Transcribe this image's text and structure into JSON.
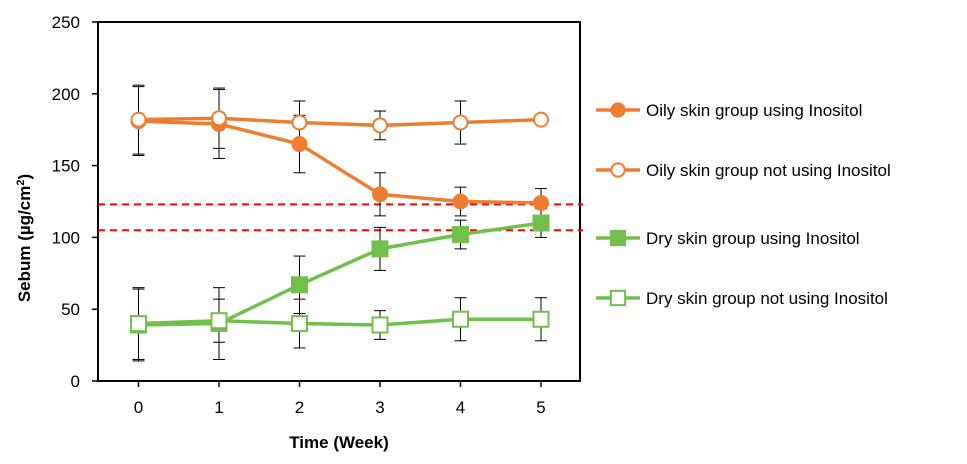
{
  "chart_data": {
    "type": "line",
    "title": "",
    "xlabel": "Time (Week)",
    "ylabel_main": "Sebum (µg/cm",
    "ylabel_sup": "2",
    "ylabel_close": ")",
    "x": [
      0,
      1,
      2,
      3,
      4,
      5
    ],
    "x_tick_labels": [
      "0",
      "1",
      "2",
      "3",
      "4",
      "5"
    ],
    "ylim": [
      0,
      250
    ],
    "y_ticks": [
      0,
      50,
      100,
      150,
      200,
      250
    ],
    "y_tick_labels": [
      "0",
      "50",
      "100",
      "150",
      "200",
      "250"
    ],
    "grid": false,
    "legend_position": "right",
    "reference_lines": [
      {
        "y": 123,
        "color": "#ff0000",
        "style": "dashed"
      },
      {
        "y": 105,
        "color": "#ff0000",
        "style": "dashed"
      }
    ],
    "series": [
      {
        "name": "Oily skin group using Inositol",
        "color": "#ed7d31",
        "marker": "circle",
        "filled": true,
        "values": [
          181,
          179,
          165,
          130,
          125,
          124
        ],
        "errors": [
          24,
          24,
          20,
          15,
          10,
          10
        ]
      },
      {
        "name": "Oily skin group not using Inositol",
        "color": "#ed7d31",
        "marker": "circle",
        "filled": false,
        "values": [
          182,
          183,
          180,
          178,
          180,
          182
        ],
        "errors": [
          24,
          21,
          15,
          10,
          15,
          0
        ]
      },
      {
        "name": "Dry skin group using Inositol",
        "color": "#70c04b",
        "marker": "square",
        "filled": true,
        "values": [
          39,
          40,
          67,
          92,
          102,
          110
        ],
        "errors": [
          25,
          25,
          20,
          15,
          10,
          10
        ]
      },
      {
        "name": "Dry skin group not using Inositol",
        "color": "#70c04b",
        "marker": "square",
        "filled": false,
        "values": [
          40,
          42,
          40,
          39,
          43,
          43
        ],
        "errors": [
          25,
          15,
          17,
          10,
          15,
          15
        ]
      }
    ]
  }
}
